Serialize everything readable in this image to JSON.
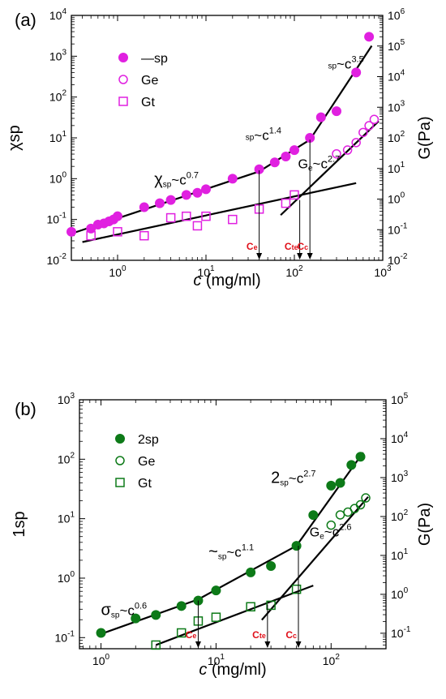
{
  "chart_data": [
    {
      "panel": "(a)",
      "type": "scatter",
      "x_scale": "log",
      "y_scale": "log",
      "y2_scale": "log",
      "xlim": [
        0.3,
        1000
      ],
      "ylim": [
        0.01,
        10000
      ],
      "y2lim": [
        0.01,
        1000000
      ],
      "xlabel_italic": "c",
      "xlabel_rest": " (mg/ml)",
      "ylabel": "χsp",
      "y2label": "G(Pa)",
      "x_ticks": [
        {
          "v": 1,
          "b": "10",
          "e": "0"
        },
        {
          "v": 10,
          "b": "10",
          "e": "1"
        },
        {
          "v": 100,
          "b": "10",
          "e": "2"
        },
        {
          "v": 1000,
          "b": "10",
          "e": "3"
        }
      ],
      "y_ticks": [
        {
          "v": 0.01,
          "b": "10",
          "e": "-2"
        },
        {
          "v": 0.1,
          "b": "10",
          "e": "-1"
        },
        {
          "v": 1,
          "b": "10",
          "e": "0"
        },
        {
          "v": 10,
          "b": "10",
          "e": "1"
        },
        {
          "v": 100,
          "b": "10",
          "e": "2"
        },
        {
          "v": 1000,
          "b": "10",
          "e": "3"
        },
        {
          "v": 10000,
          "b": "10",
          "e": "4"
        }
      ],
      "y2_ticks": [
        {
          "v": 0.01,
          "b": "10",
          "e": "-2"
        },
        {
          "v": 0.1,
          "b": "10",
          "e": "-1"
        },
        {
          "v": 1,
          "b": "10",
          "e": "0"
        },
        {
          "v": 10,
          "b": "10",
          "e": "1"
        },
        {
          "v": 100,
          "b": "10",
          "e": "2"
        },
        {
          "v": 1000,
          "b": "10",
          "e": "3"
        },
        {
          "v": 10000,
          "b": "10",
          "e": "4"
        },
        {
          "v": 100000,
          "b": "10",
          "e": "5"
        },
        {
          "v": 1000000,
          "b": "10",
          "e": "6"
        }
      ],
      "color": "#e020e0",
      "series": [
        {
          "name": "—sp",
          "marker": "filled-circle",
          "axis": "left",
          "x": [
            0.3,
            0.5,
            0.6,
            0.7,
            0.8,
            0.9,
            1,
            2,
            3,
            4,
            6,
            8,
            10,
            20,
            40,
            60,
            80,
            100,
            150,
            200,
            300,
            500,
            700
          ],
          "y": [
            0.05,
            0.06,
            0.075,
            0.08,
            0.09,
            0.1,
            0.12,
            0.2,
            0.25,
            0.3,
            0.4,
            0.45,
            0.55,
            1.0,
            1.7,
            2.5,
            3.5,
            5,
            10,
            32,
            45,
            400,
            3000
          ]
        },
        {
          "name": "Ge",
          "marker": "open-circle",
          "axis": "right",
          "x": [
            300,
            400,
            500,
            600,
            700,
            800
          ],
          "y": [
            30,
            40,
            70,
            150,
            250,
            400
          ]
        },
        {
          "name": "Gt",
          "marker": "open-square",
          "axis": "left",
          "x": [
            0.5,
            1,
            2,
            4,
            6,
            8,
            10,
            20,
            40,
            80,
            100
          ],
          "y": [
            0.04,
            0.05,
            0.04,
            0.11,
            0.12,
            0.07,
            0.12,
            0.1,
            0.18,
            0.25,
            0.4
          ]
        }
      ],
      "fits": [
        {
          "axis": "left",
          "x": [
            0.3,
            40
          ],
          "y": [
            0.045,
            1.5
          ]
        },
        {
          "axis": "left",
          "x": [
            40,
            150
          ],
          "y": [
            1.5,
            9
          ]
        },
        {
          "axis": "left",
          "x": [
            150,
            750
          ],
          "y": [
            9,
            1800
          ]
        },
        {
          "axis": "left",
          "x": [
            0.4,
            500
          ],
          "y": [
            0.028,
            0.78
          ]
        },
        {
          "axis": "right",
          "x": [
            70,
            900
          ],
          "y": [
            0.3,
            350
          ]
        }
      ],
      "annotations": [
        {
          "pre": "sp",
          "pre_size": 10,
          "base": "~c",
          "sup": "3.5",
          "x": 240,
          "y": 500
        },
        {
          "pre": "sp",
          "pre_size": 10,
          "base": "~c",
          "sup": "1.4",
          "x": 28,
          "y": 9
        },
        {
          "pre": "χ",
          "pre_size": 20,
          "sub": "sp",
          "base": "~c",
          "sup": "0.7",
          "x": 2.6,
          "y": 0.72
        },
        {
          "pre": "G",
          "pre_size": 16,
          "sub": "e",
          "base": "~c",
          "sup": "2.7",
          "x": 110,
          "y": 1.8
        }
      ],
      "critical": [
        {
          "label_base": "C",
          "label_sub": "e",
          "x": 40,
          "y_top": 1.6
        },
        {
          "label_base": "C",
          "label_sub": "te",
          "x": 115,
          "y_top": 0.3
        },
        {
          "label_base": "C",
          "label_sub": "c",
          "x": 150,
          "y_top": 9
        }
      ]
    },
    {
      "panel": "(b)",
      "type": "scatter",
      "x_scale": "log",
      "y_scale": "log",
      "y2_scale": "log",
      "xlim": [
        0.65,
        300
      ],
      "ylim": [
        0.065,
        1000
      ],
      "y2lim": [
        0.04,
        100000
      ],
      "xlabel_italic": "c",
      "xlabel_rest": " (mg/ml)",
      "ylabel": "1sp",
      "y2label": "G(Pa)",
      "x_ticks": [
        {
          "v": 1,
          "b": "10",
          "e": "0"
        },
        {
          "v": 10,
          "b": "10",
          "e": "1"
        },
        {
          "v": 100,
          "b": "10",
          "e": "2"
        }
      ],
      "y_ticks": [
        {
          "v": 0.1,
          "b": "10",
          "e": "-1"
        },
        {
          "v": 1,
          "b": "10",
          "e": "0"
        },
        {
          "v": 10,
          "b": "10",
          "e": "1"
        },
        {
          "v": 100,
          "b": "10",
          "e": "2"
        },
        {
          "v": 1000,
          "b": "10",
          "e": "3"
        }
      ],
      "y2_ticks": [
        {
          "v": 0.1,
          "b": "10",
          "e": "-1"
        },
        {
          "v": 1,
          "b": "10",
          "e": "0"
        },
        {
          "v": 10,
          "b": "10",
          "e": "1"
        },
        {
          "v": 100,
          "b": "10",
          "e": "2"
        },
        {
          "v": 1000,
          "b": "10",
          "e": "3"
        },
        {
          "v": 10000,
          "b": "10",
          "e": "4"
        },
        {
          "v": 100000,
          "b": "10",
          "e": "5"
        }
      ],
      "color": "#0d7a18",
      "series": [
        {
          "name": "2sp",
          "marker": "filled-circle",
          "axis": "left",
          "x": [
            1,
            2,
            3,
            5,
            7,
            10,
            20,
            30,
            50,
            70,
            100,
            120,
            150,
            180
          ],
          "y": [
            0.12,
            0.21,
            0.24,
            0.34,
            0.42,
            0.62,
            1.25,
            1.6,
            3.5,
            11.5,
            36,
            40,
            80,
            110
          ]
        },
        {
          "name": "Ge",
          "marker": "open-circle",
          "axis": "right",
          "x": [
            100,
            120,
            140,
            160,
            180,
            200
          ],
          "y": [
            60,
            110,
            130,
            160,
            200,
            300
          ]
        },
        {
          "name": "Gt",
          "marker": "open-square",
          "axis": "left",
          "x": [
            3,
            5,
            7,
            10,
            20,
            30,
            50
          ],
          "y": [
            0.075,
            0.12,
            0.19,
            0.22,
            0.33,
            0.35,
            0.65
          ]
        }
      ],
      "fits": [
        {
          "axis": "left",
          "x": [
            1,
            7
          ],
          "y": [
            0.115,
            0.44
          ]
        },
        {
          "axis": "left",
          "x": [
            7,
            50
          ],
          "y": [
            0.44,
            3.5
          ]
        },
        {
          "axis": "left",
          "x": [
            50,
            190
          ],
          "y": [
            3.5,
            130
          ]
        },
        {
          "axis": "left",
          "x": [
            3,
            70
          ],
          "y": [
            0.075,
            0.75
          ]
        },
        {
          "axis": "right",
          "x": [
            25,
            210
          ],
          "y": [
            0.22,
            320
          ]
        }
      ],
      "annotations": [
        {
          "pre": "σ",
          "pre_size": 20,
          "sub": "sp",
          "base": "~c",
          "sup": "0.6",
          "x": 1.0,
          "y": 0.24
        },
        {
          "pre": "~",
          "pre_size": 20,
          "sub": "sp",
          "base": "~c",
          "sup": "1.1",
          "x": 8.6,
          "y": 2.3
        },
        {
          "pre": "2",
          "pre_size": 20,
          "sub": "sp",
          "base": "~c",
          "sup": "2.7",
          "x": 30,
          "y": 40
        },
        {
          "pre": "G",
          "pre_size": 16,
          "sub": "e",
          "base": "~c",
          "sup": "2.6",
          "x": 65,
          "y": 5
        }
      ],
      "critical": [
        {
          "label_base": "C",
          "label_sub": "e",
          "x": 7,
          "y_top": 0.42
        },
        {
          "label_base": "C",
          "label_sub": "te",
          "x": 28,
          "y_top": 0.36
        },
        {
          "label_base": "C",
          "label_sub": "c",
          "x": 52,
          "y_top": 3.5
        }
      ]
    }
  ],
  "critical_color": "#e0101a"
}
